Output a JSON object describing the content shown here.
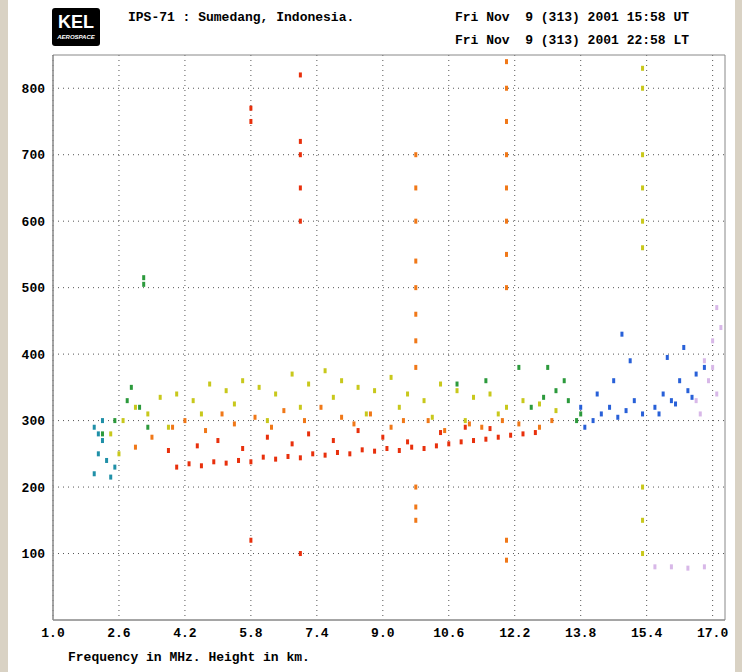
{
  "chart_data": {
    "type": "scatter",
    "title": "IPS-71 : Sumedang, Indonesia.",
    "annotations": [
      "KEL",
      "AEROSPACE",
      "Fri Nov  9 (313) 2001 15:58 UT",
      "Fri Nov  9 (313) 2001 22:58 LT"
    ],
    "x_label": "Frequency in MHz. Height in km.",
    "xlim": [
      1.0,
      17.3
    ],
    "xticks": [
      {
        "value": 1.0,
        "label": "1.0"
      },
      2.6,
      4.2,
      5.8,
      7.4,
      {
        "value": 9.0,
        "label": "9.0"
      },
      10.6,
      12.2,
      13.8,
      15.4,
      {
        "value": 17.0,
        "label": "17.0"
      }
    ],
    "ylim": [
      0,
      850
    ],
    "yticks": [
      100,
      200,
      300,
      400,
      500,
      600,
      700,
      800
    ],
    "grid": true,
    "marker": "square",
    "series": [
      {
        "color": "#2090a8",
        "x": [
          2.0,
          2.1,
          2.2,
          2.3,
          2.2,
          2.0,
          2.4,
          2.5,
          2.1
        ],
        "values": [
          220,
          250,
          270,
          240,
          300,
          290,
          215,
          230,
          280
        ]
      },
      {
        "color": "#c8c81c",
        "x": [
          2.4,
          2.7,
          3.0,
          3.3,
          3.6,
          4.0,
          4.4,
          4.8,
          5.2,
          5.6,
          6.0,
          6.4,
          6.8,
          7.2,
          7.6,
          8.0,
          8.4,
          8.8,
          9.2,
          9.6,
          10.0,
          10.4,
          10.8,
          11.2,
          11.6,
          12.0,
          12.4,
          12.8,
          13.2,
          2.6,
          3.8,
          4.6,
          5.4,
          6.2,
          7.0,
          7.8,
          8.6,
          9.4,
          10.2,
          11.0,
          11.8
        ],
        "values": [
          280,
          300,
          320,
          310,
          335,
          340,
          330,
          355,
          345,
          360,
          350,
          340,
          370,
          355,
          375,
          360,
          350,
          345,
          365,
          340,
          330,
          355,
          345,
          335,
          340,
          320,
          330,
          325,
          315,
          250,
          290,
          310,
          325,
          300,
          320,
          335,
          310,
          320,
          305,
          300,
          310
        ]
      },
      {
        "color": "#f07818",
        "x": [
          3.0,
          3.4,
          3.9,
          4.2,
          4.7,
          5.1,
          5.4,
          5.9,
          6.3,
          6.6,
          7.1,
          7.5,
          8.0,
          8.3,
          8.7,
          9.2,
          9.5,
          10.1,
          10.5,
          11.1,
          11.4,
          11.9,
          12.3,
          12.8,
          13.1
        ],
        "values": [
          260,
          275,
          290,
          300,
          285,
          310,
          295,
          305,
          290,
          315,
          300,
          320,
          305,
          295,
          310,
          290,
          300,
          300,
          285,
          295,
          290,
          300,
          295,
          290,
          300
        ]
      },
      {
        "color": "#e8300c",
        "x": [
          4.0,
          4.3,
          4.6,
          4.9,
          5.2,
          5.5,
          5.8,
          6.1,
          6.4,
          6.7,
          7.0,
          7.3,
          7.6,
          7.9,
          8.2,
          8.5,
          8.8,
          9.1,
          9.4,
          9.7,
          10.0,
          10.3,
          10.6,
          10.9,
          11.2,
          11.5,
          11.8,
          12.1,
          12.4,
          12.7,
          3.8,
          4.5,
          5.0,
          5.6,
          6.2,
          6.8,
          7.2,
          7.8,
          8.4,
          9.0,
          9.6,
          10.4,
          11.0,
          11.6
        ],
        "values": [
          230,
          235,
          232,
          238,
          236,
          240,
          238,
          245,
          242,
          246,
          244,
          250,
          248,
          252,
          250,
          256,
          254,
          258,
          255,
          260,
          258,
          262,
          265,
          268,
          270,
          272,
          275,
          278,
          280,
          282,
          255,
          262,
          270,
          258,
          275,
          265,
          280,
          270,
          285,
          275,
          268,
          282,
          290,
          288
        ]
      },
      {
        "color": "#2c9a3c",
        "x": [
          2.2,
          2.5,
          2.8,
          3.1,
          3.3,
          2.9,
          3.2,
          12.6,
          12.9,
          13.2,
          13.5,
          13.8,
          13.0,
          13.4,
          13.7,
          3.2,
          10.8,
          11.5,
          12.3
        ],
        "values": [
          280,
          300,
          330,
          320,
          290,
          350,
          515,
          320,
          335,
          345,
          330,
          310,
          380,
          360,
          300,
          505,
          355,
          360,
          380
        ]
      },
      {
        "color": "#2860d8",
        "x": [
          13.9,
          14.1,
          14.3,
          14.5,
          14.7,
          14.9,
          15.1,
          15.3,
          15.6,
          15.8,
          16.0,
          16.2,
          16.4,
          16.6,
          16.8,
          14.2,
          14.6,
          15.0,
          15.7,
          16.1,
          16.5,
          14.8,
          15.9,
          16.3,
          13.8
        ],
        "values": [
          290,
          300,
          310,
          320,
          305,
          315,
          330,
          310,
          320,
          340,
          330,
          360,
          345,
          370,
          380,
          340,
          360,
          390,
          310,
          325,
          335,
          430,
          395,
          410,
          320
        ]
      },
      {
        "color": "#d8b8e8",
        "x": [
          16.6,
          16.8,
          17.0,
          17.1,
          17.2,
          16.9,
          17.1,
          16.7,
          17.0,
          15.6,
          16.0,
          16.4,
          16.8
        ],
        "values": [
          330,
          390,
          420,
          470,
          440,
          360,
          340,
          310,
          380,
          80,
          80,
          78,
          80
        ]
      },
      {
        "color": "#f07818",
        "x": [
          9.8,
          9.8,
          9.8,
          9.8,
          9.8,
          9.8,
          9.8,
          9.8,
          9.8,
          9.8,
          9.8,
          12.0,
          12.0,
          12.0,
          12.0,
          12.0,
          12.0,
          12.0,
          12.0,
          12.0,
          12.0
        ],
        "values": [
          150,
          170,
          200,
          380,
          420,
          460,
          500,
          540,
          600,
          650,
          700,
          90,
          120,
          500,
          550,
          600,
          650,
          700,
          750,
          800,
          840
        ]
      },
      {
        "color": "#e8300c",
        "x": [
          7.0,
          7.0,
          7.0,
          7.0,
          7.0,
          7.0,
          5.8,
          5.8,
          5.8
        ],
        "values": [
          100,
          600,
          650,
          700,
          720,
          820,
          120,
          750,
          770
        ]
      },
      {
        "color": "#c8c81c",
        "x": [
          15.3,
          15.3,
          15.3,
          15.3,
          15.3,
          15.3,
          15.3,
          15.3,
          15.3
        ],
        "values": [
          100,
          150,
          200,
          560,
          600,
          650,
          700,
          800,
          830
        ]
      }
    ]
  }
}
